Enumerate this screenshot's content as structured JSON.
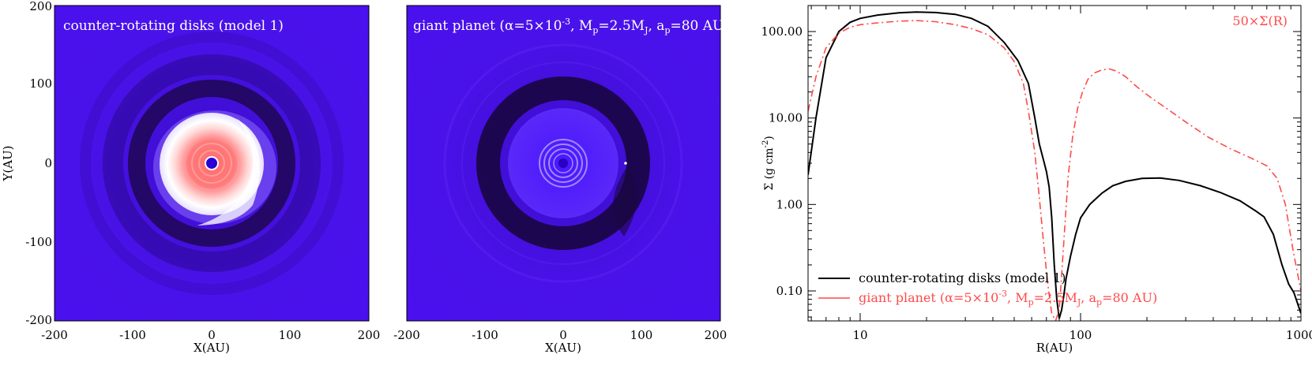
{
  "panels": {
    "left": {
      "label": "counter-rotating disks (model 1)",
      "xlabel": "X(AU)",
      "ylabel": "Y(AU)",
      "xticks": [
        "-200",
        "-100",
        "0",
        "100",
        "200"
      ],
      "yticks": [
        "200",
        "100",
        "0",
        "-100",
        "-200"
      ]
    },
    "middle": {
      "label_parts": [
        "giant planet (α=5×10",
        "-3",
        ", M",
        "p",
        "=2.5M",
        "J",
        ", a",
        "p",
        "=80 AU"
      ],
      "xlabel": "X(AU)",
      "xticks": [
        "-200",
        "-100",
        "0",
        "100",
        "200"
      ]
    }
  },
  "chart_data": [
    {
      "type": "heatmap",
      "label": "counter-rotating disks (model 1)",
      "xlabel": "X(AU)",
      "ylabel": "Y(AU)",
      "xlim": [
        -200,
        200
      ],
      "ylim": [
        -200,
        200
      ],
      "colors": {
        "background": "#4a10ee",
        "dark": "#1a0640",
        "bright": "#ffffff",
        "core": "#ff6e6e"
      }
    },
    {
      "type": "heatmap",
      "label": "giant planet (α=5×10-3, Mp=2.5MJ, ap=80 AU",
      "xlabel": "X(AU)",
      "xlim": [
        -200,
        200
      ],
      "ylim": [
        -200,
        200
      ],
      "colors": {
        "background": "#4a10ee",
        "dark": "#1a0640",
        "rings": "#a08aff"
      }
    },
    {
      "type": "line",
      "xscale": "log",
      "yscale": "log",
      "xlabel": "R(AU)",
      "ylabel_parts": [
        "Σ (g cm",
        "-2",
        ")"
      ],
      "xlim": [
        5.8,
        1000
      ],
      "ylim": [
        0.045,
        200
      ],
      "xticks": [
        "10",
        "100",
        "1000"
      ],
      "yticks": [
        "100.00",
        "10.00",
        "1.00",
        "0.10"
      ],
      "annotation": "50×Σ(R)",
      "legend_position": "bottom-left",
      "series": [
        {
          "name": "counter-rotating disks (model 1)",
          "color": "#000000",
          "style": "solid",
          "x": [
            5.8,
            6.3,
            7,
            8,
            9,
            10,
            12,
            15,
            18,
            22,
            27,
            32,
            38,
            45,
            52,
            58,
            62,
            65,
            68,
            70,
            72,
            74,
            76,
            78,
            80,
            82,
            84,
            86,
            90,
            95,
            100,
            110,
            125,
            140,
            160,
            190,
            230,
            280,
            350,
            430,
            530,
            620,
            680,
            750,
            820,
            880,
            930,
            1000
          ],
          "y": [
            2.2,
            10,
            50,
            100,
            128,
            142,
            155,
            165,
            168,
            166,
            158,
            142,
            115,
            75,
            46,
            25,
            10,
            5,
            3.2,
            2.4,
            1.6,
            0.7,
            0.2,
            0.08,
            0.048,
            0.06,
            0.09,
            0.14,
            0.25,
            0.45,
            0.7,
            1.0,
            1.35,
            1.65,
            1.85,
            2.0,
            2.02,
            1.9,
            1.65,
            1.38,
            1.1,
            0.85,
            0.72,
            0.45,
            0.2,
            0.12,
            0.095,
            0.055
          ]
        },
        {
          "name": "giant planet (α=5×10-3, Mp=2.5MJ, ap=80 AU)",
          "color": "#ff4a4a",
          "style": "dashdot",
          "x": [
            5.8,
            6.3,
            7,
            8,
            9,
            10,
            12,
            15,
            18,
            22,
            27,
            32,
            38,
            45,
            50,
            55,
            58,
            62,
            65,
            68,
            71,
            74,
            77,
            80,
            82,
            85,
            88,
            92,
            97,
            102,
            108,
            115,
            125,
            135,
            145,
            160,
            180,
            210,
            250,
            300,
            380,
            480,
            600,
            700,
            780,
            850,
            920,
            1000
          ],
          "y": [
            12,
            30,
            65,
            96,
            112,
            120,
            126,
            132,
            134,
            130,
            120,
            108,
            92,
            65,
            45,
            25,
            12,
            4,
            1.2,
            0.35,
            0.12,
            0.055,
            0.045,
            0.06,
            0.15,
            0.6,
            2.2,
            6,
            13,
            20,
            28,
            33,
            36,
            37,
            35,
            30,
            23,
            17,
            12.5,
            9,
            6,
            4.4,
            3.4,
            2.8,
            2.0,
            1.0,
            0.3,
            0.1
          ]
        }
      ]
    }
  ]
}
